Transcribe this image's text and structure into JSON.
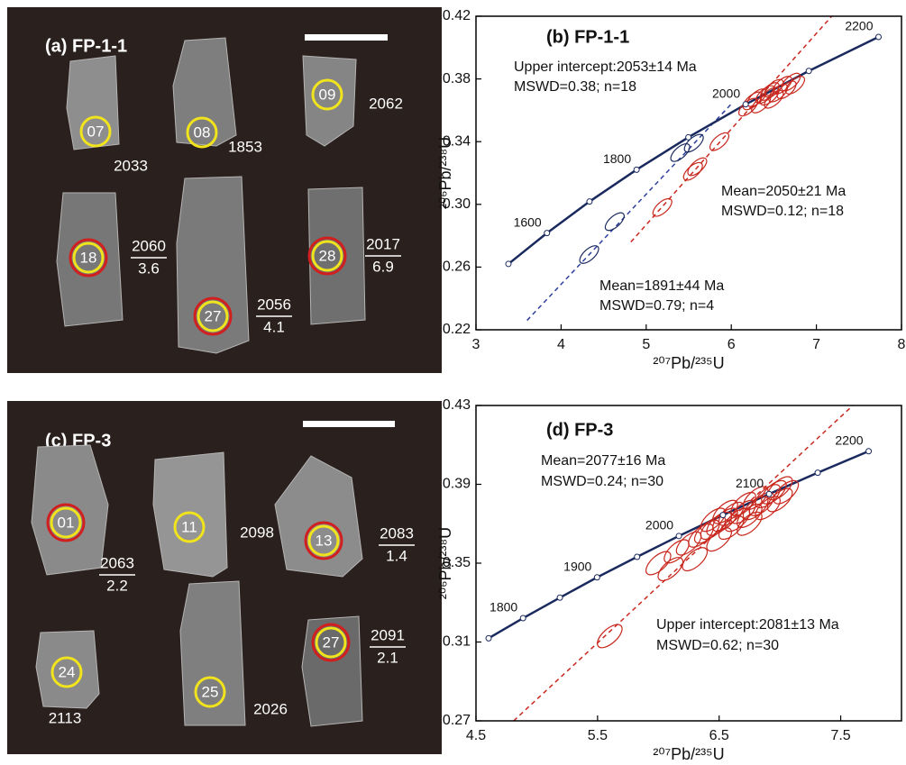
{
  "panels": [
    {
      "title": "(a) FP-1-1",
      "spots": [
        {
          "id": "07",
          "age": "2033"
        },
        {
          "id": "08",
          "age": "1853"
        },
        {
          "id": "09",
          "age": "2062"
        },
        {
          "id": "18",
          "age": "2060",
          "ehf": "3.6"
        },
        {
          "id": "27",
          "age": "2056",
          "ehf": "4.1"
        },
        {
          "id": "28",
          "age": "2017",
          "ehf": "6.9"
        }
      ]
    },
    {
      "title": "(c) FP-3",
      "spots": [
        {
          "id": "01",
          "age": "2063",
          "ehf": "2.2"
        },
        {
          "id": "11",
          "age": "2098"
        },
        {
          "id": "13",
          "age": "2083",
          "ehf": "1.4"
        },
        {
          "id": "24",
          "age": "2113"
        },
        {
          "id": "25",
          "age": "2026"
        },
        {
          "id": "27",
          "age": "2091",
          "ehf": "2.1"
        }
      ]
    }
  ],
  "chart_data": [
    {
      "type": "concordia",
      "title": "(b) FP-1-1",
      "xlabel": "²⁰⁷Pb/²³⁵U",
      "ylabel": "²⁰⁶Pb/²³⁸U",
      "xlim": [
        3,
        8
      ],
      "ylim": [
        0.22,
        0.42
      ],
      "xticks": [
        3,
        4,
        5,
        6,
        7,
        8
      ],
      "yticks": [
        0.22,
        0.26,
        {
          "value": 0.3,
          "label": "0.30"
        },
        0.34,
        0.38,
        0.42
      ],
      "concordia": {
        "color": "#1b2a5e",
        "x": [
          3.381,
          3.834,
          4.334,
          4.887,
          5.496,
          6.169,
          6.911,
          7.73
        ],
        "y": [
          0.262,
          0.2817,
          0.3018,
          0.3221,
          0.3428,
          0.3638,
          0.3851,
          0.4068
        ],
        "labels": [
          null,
          1600,
          null,
          1800,
          null,
          2000,
          null,
          2200
        ]
      },
      "series": [
        {
          "color": "#c8281e",
          "x": [
            5.19,
            5.55,
            5.6,
            5.86,
            6.2,
            6.25,
            6.3,
            6.35,
            6.4,
            6.45,
            6.5,
            6.5,
            6.55,
            6.6,
            6.65,
            6.7,
            6.75,
            6.45
          ],
          "y": [
            0.298,
            0.321,
            0.324,
            0.34,
            0.362,
            0.366,
            0.368,
            0.364,
            0.37,
            0.372,
            0.367,
            0.374,
            0.371,
            0.376,
            0.373,
            0.378,
            0.376,
            0.369
          ]
        },
        {
          "color": "#1b2a5e",
          "x": [
            4.33,
            4.63,
            5.4,
            5.56
          ],
          "y": [
            0.268,
            0.289,
            0.333,
            0.339
          ]
        }
      ],
      "discordia": [
        {
          "color": "#c8281e",
          "x": [
            4.82,
            7.18
          ],
          "y": [
            0.276,
            0.42
          ]
        },
        {
          "color": "#2d3f9e",
          "x": [
            3.6,
            6.0
          ],
          "y": [
            0.226,
            0.364
          ]
        }
      ],
      "annotations": [
        "Upper intercept:2053±14 Ma",
        "MSWD=0.38; n=18",
        "Mean=2050±21 Ma",
        "MSWD=0.12; n=18",
        "Mean=1891±44 Ma",
        "MSWD=0.79; n=4"
      ]
    },
    {
      "type": "concordia",
      "title": "(d) FP-3",
      "xlabel": "²⁰⁷Pb/²³⁵U",
      "ylabel": "²⁰⁶Pb/²³⁸U",
      "xlim": [
        4.5,
        8.0
      ],
      "ylim": [
        0.27,
        0.43
      ],
      "xticks": [
        4.5,
        5.5,
        6.5,
        7.5
      ],
      "yticks": [
        0.27,
        0.31,
        0.35,
        0.39,
        0.43
      ],
      "concordia": {
        "color": "#1b2a5e",
        "x": [
          4.604,
          4.887,
          5.19,
          5.496,
          5.825,
          6.169,
          6.531,
          6.911,
          7.311,
          7.73
        ],
        "y": [
          0.3119,
          0.3221,
          0.3325,
          0.3428,
          0.3532,
          0.3638,
          0.3744,
          0.3851,
          0.3959,
          0.4068
        ],
        "labels": [
          null,
          1800,
          null,
          1900,
          null,
          2000,
          null,
          2100,
          null,
          2200
        ]
      },
      "series": [
        {
          "color": "#c8281e",
          "x": [
            5.6,
            6.0,
            6.1,
            6.15,
            6.3,
            6.35,
            6.4,
            6.45,
            6.5,
            6.5,
            6.55,
            6.6,
            6.6,
            6.65,
            6.7,
            6.7,
            6.75,
            6.8,
            6.8,
            6.85,
            6.9,
            6.9,
            6.95,
            7.0,
            7.0,
            7.05,
            6.55,
            6.45,
            6.25,
            6.75
          ],
          "y": [
            0.313,
            0.35,
            0.347,
            0.356,
            0.352,
            0.364,
            0.366,
            0.368,
            0.362,
            0.37,
            0.372,
            0.368,
            0.375,
            0.372,
            0.376,
            0.38,
            0.374,
            0.378,
            0.383,
            0.38,
            0.384,
            0.378,
            0.386,
            0.382,
            0.388,
            0.386,
            0.376,
            0.372,
            0.36,
            0.37
          ]
        }
      ],
      "discordia": [
        {
          "color": "#c8281e",
          "x": [
            4.81,
            7.6
          ],
          "y": [
            0.27,
            0.43
          ]
        }
      ],
      "annotations": [
        "Mean=2077±16 Ma",
        "MSWD=0.24; n=30",
        "Upper intercept:2081±13 Ma",
        "MSWD=0.62; n=30"
      ]
    }
  ]
}
